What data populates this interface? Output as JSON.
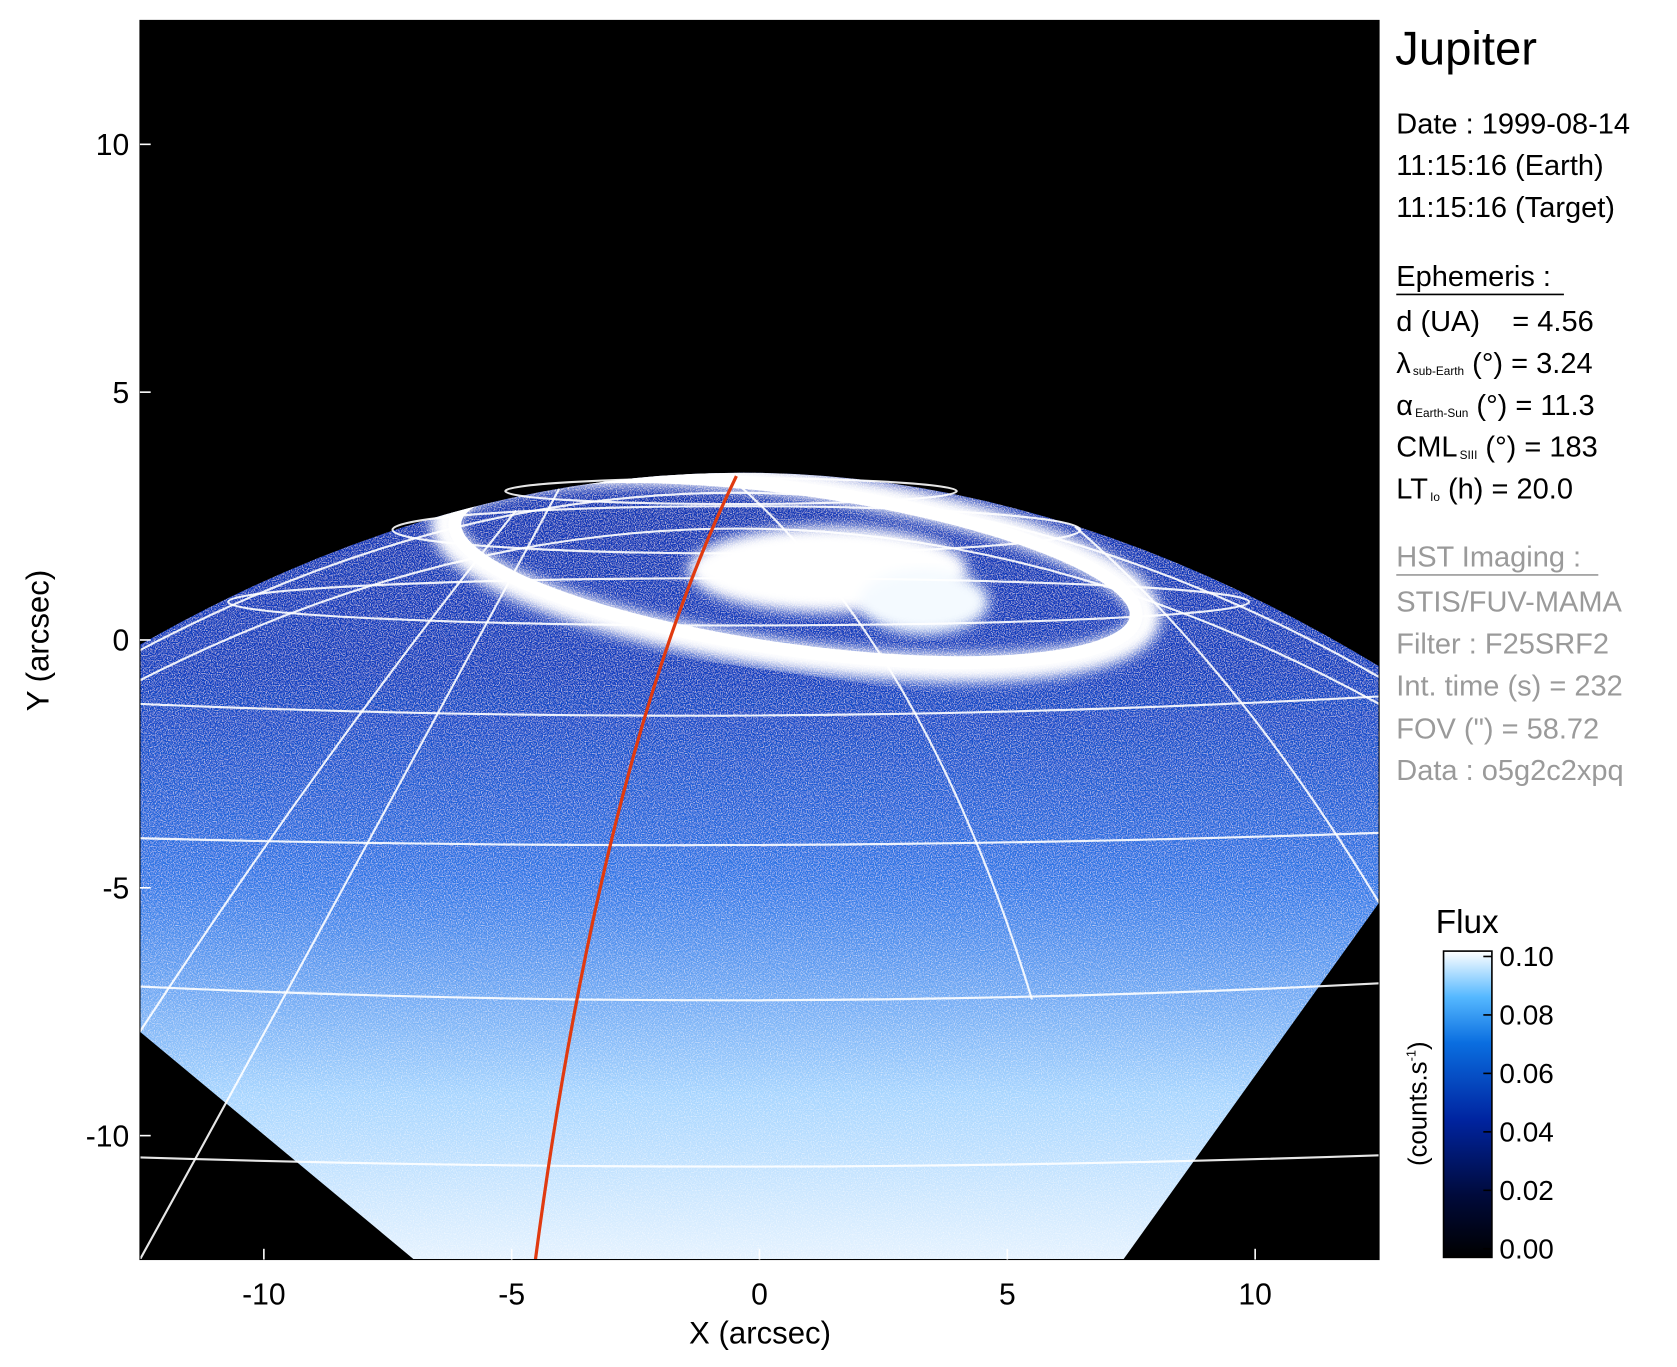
{
  "chart_data": {
    "type": "heatmap",
    "title": "Jupiter",
    "xlabel": "X (arcsec)",
    "ylabel": "Y (arcsec)",
    "xlim": [
      -12.5,
      12.5
    ],
    "ylim": [
      -12.5,
      12.5
    ],
    "xticks": [
      -10,
      -5,
      0,
      5,
      10
    ],
    "yticks": [
      10,
      5,
      0,
      -5,
      -10
    ],
    "grid": "planetographic latitude/longitude grid",
    "colorbar": {
      "title": "Flux",
      "label": "(counts.s",
      "label_sup": "-1",
      "label_close": ")",
      "range": [
        0.0,
        0.1
      ],
      "ticks": [
        "0.10",
        "0.08",
        "0.06",
        "0.04",
        "0.02",
        "0.00"
      ],
      "tick_values": [
        0.1,
        0.08,
        0.06,
        0.04,
        0.02,
        0.0
      ],
      "colors": [
        "#000000",
        "#000a3a",
        "#0024a0",
        "#0a6ee0",
        "#55b8ff",
        "#ffffff"
      ]
    },
    "highlight_line_color": "#e03a10"
  },
  "info": {
    "date": "Date : 1999-08-14",
    "time_earth": "11:15:16 (Earth)",
    "time_target": "11:15:16 (Target)",
    "ephemeris_header": "Ephemeris :",
    "d_label": "d (UA)    = 4.56",
    "lambda_sym": "λ",
    "lambda_sub": "sub-Earth",
    "lambda_val": " (°) = 3.24",
    "alpha_sym": "α",
    "alpha_sub": "Earth-Sun",
    "alpha_val": " (°) = 11.3",
    "cml_sym": "CML",
    "cml_sub": "SIII",
    "cml_val": " (°) = 183",
    "lt_sym": "LT",
    "lt_sub": "Io",
    "lt_val": " (h) = 20.0",
    "hst_header": "HST Imaging :",
    "instrument": "STIS/FUV-MAMA",
    "filter": "Filter : F25SRF2",
    "int_time": "Int. time (s) = 232",
    "fov": "FOV (\") = 58.72",
    "dataset": "Data : o5g2c2xpq"
  }
}
